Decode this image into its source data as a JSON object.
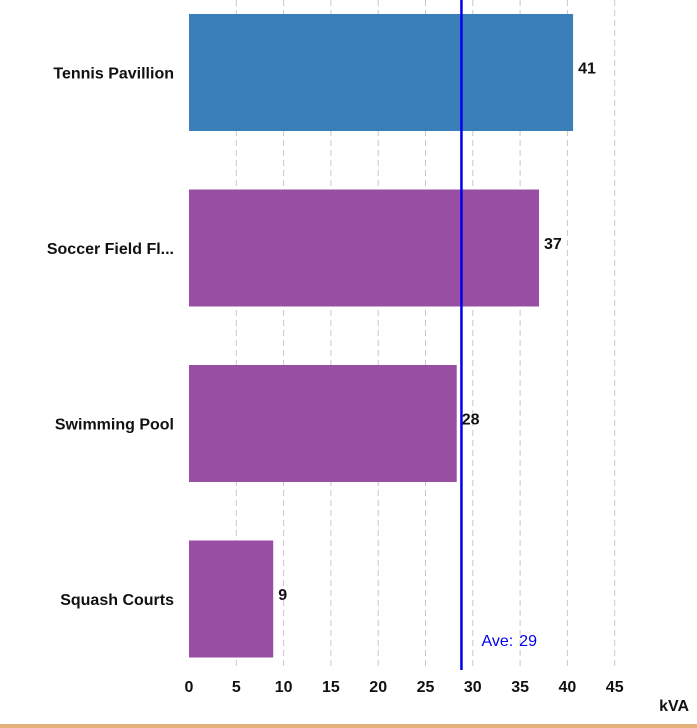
{
  "chart_data": {
    "type": "bar",
    "orientation": "horizontal",
    "categories": [
      "Tennis Pavillion",
      "Soccer Field Fl...",
      "Swimming Pool",
      "Squash Courts"
    ],
    "values": [
      40.6,
      37,
      28.3,
      8.9
    ],
    "value_labels": [
      "41",
      "37",
      "28",
      "9"
    ],
    "bar_colors": [
      "#3a7fba",
      "#984ea3",
      "#984ea3",
      "#984ea3"
    ],
    "xlim": [
      0,
      45
    ],
    "xticks": [
      0,
      5,
      10,
      15,
      20,
      25,
      30,
      35,
      40,
      45
    ],
    "xtick_labels": [
      "0",
      "5",
      "10",
      "15",
      "20",
      "25",
      "30",
      "35",
      "40",
      "45"
    ],
    "xlabel": "kVA",
    "grid": true,
    "average": {
      "value": 28.8,
      "label_prefix": "Ave:",
      "label_value": "29",
      "color": "#0000ee"
    },
    "footer_line_color": "#e6b07a"
  }
}
